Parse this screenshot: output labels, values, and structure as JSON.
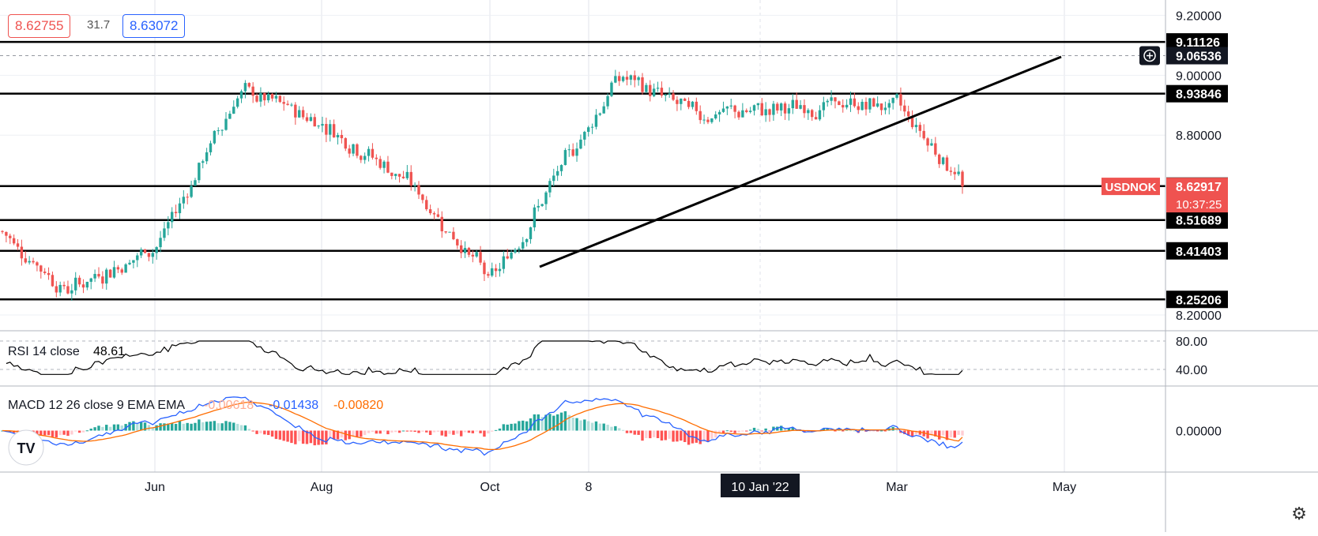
{
  "header": {
    "bid": "8.62755",
    "spread": "31.7",
    "ask": "8.63072"
  },
  "price_axis": {
    "ticks": [
      "9.20000",
      "9.00000",
      "8.80000",
      "8.20000"
    ],
    "level_labels": [
      "9.11126",
      "8.93846",
      "8.63015",
      "8.51689",
      "8.41403",
      "8.25206"
    ],
    "crosshair_label": "9.06536",
    "symbol_tag": "USDNOK",
    "current_price": "8.62917",
    "countdown": "10:37:25"
  },
  "time_axis": {
    "labels": [
      "Jun",
      "Aug",
      "Oct",
      "8",
      "10 Jan '22",
      "Mar",
      "May"
    ]
  },
  "rsi": {
    "label": "RSI 14 close",
    "value": "48.61",
    "ticks": [
      "80.00",
      "40.00"
    ]
  },
  "macd": {
    "label": "MACD 12 26 close 9 EMA EMA",
    "hist_value": "-0.00618",
    "macd_value": "-0.01438",
    "signal_value": "-0.00820",
    "tick": "0.00000"
  },
  "colors": {
    "up": "#26a69a",
    "down": "#ef5350",
    "macd_line": "#2962ff",
    "signal_line": "#ff6d00",
    "hist_up_strong": "#26a69a",
    "hist_up_weak": "#b2dfdb",
    "hist_down_strong": "#ff5252",
    "hist_down_weak": "#ffcdd2"
  },
  "chart_data": {
    "type": "candlestick",
    "symbol": "USDNOK",
    "x_range": [
      "Apr 2021",
      "May 2022"
    ],
    "ylim": [
      8.15,
      9.23
    ],
    "horizontal_levels": [
      9.11126,
      8.93846,
      8.63015,
      8.51689,
      8.41403,
      8.25206
    ],
    "trendline": {
      "from": [
        "Oct 2021",
        8.26
      ],
      "to": [
        "Apr 2022",
        9.04
      ]
    },
    "close_path": [
      {
        "month": "Apr 2021",
        "close": 8.48
      },
      {
        "month": "May 2021",
        "close": 8.28
      },
      {
        "month": "Jun 2021",
        "close": 8.43
      },
      {
        "month": "Jul 2021",
        "close": 8.95
      },
      {
        "month": "Aug 2021",
        "close": 8.84
      },
      {
        "month": "Sep 2021",
        "close": 8.64
      },
      {
        "month": "Oct 2021",
        "close": 8.31
      },
      {
        "month": "Nov 2021",
        "close": 9.0
      },
      {
        "month": "Dec 2021",
        "close": 8.87
      },
      {
        "month": "Jan 2022",
        "close": 8.88
      },
      {
        "month": "Feb 2022",
        "close": 8.9
      },
      {
        "month": "Mar 2022",
        "close": 8.9
      },
      {
        "month": "last",
        "close": 8.62917
      }
    ],
    "rsi_range": [
      20,
      90
    ],
    "rsi_last": 48.61,
    "macd_range": [
      -0.05,
      0.05
    ],
    "macd_last": -0.01438,
    "signal_last": -0.0082,
    "histogram_last": -0.00618
  }
}
